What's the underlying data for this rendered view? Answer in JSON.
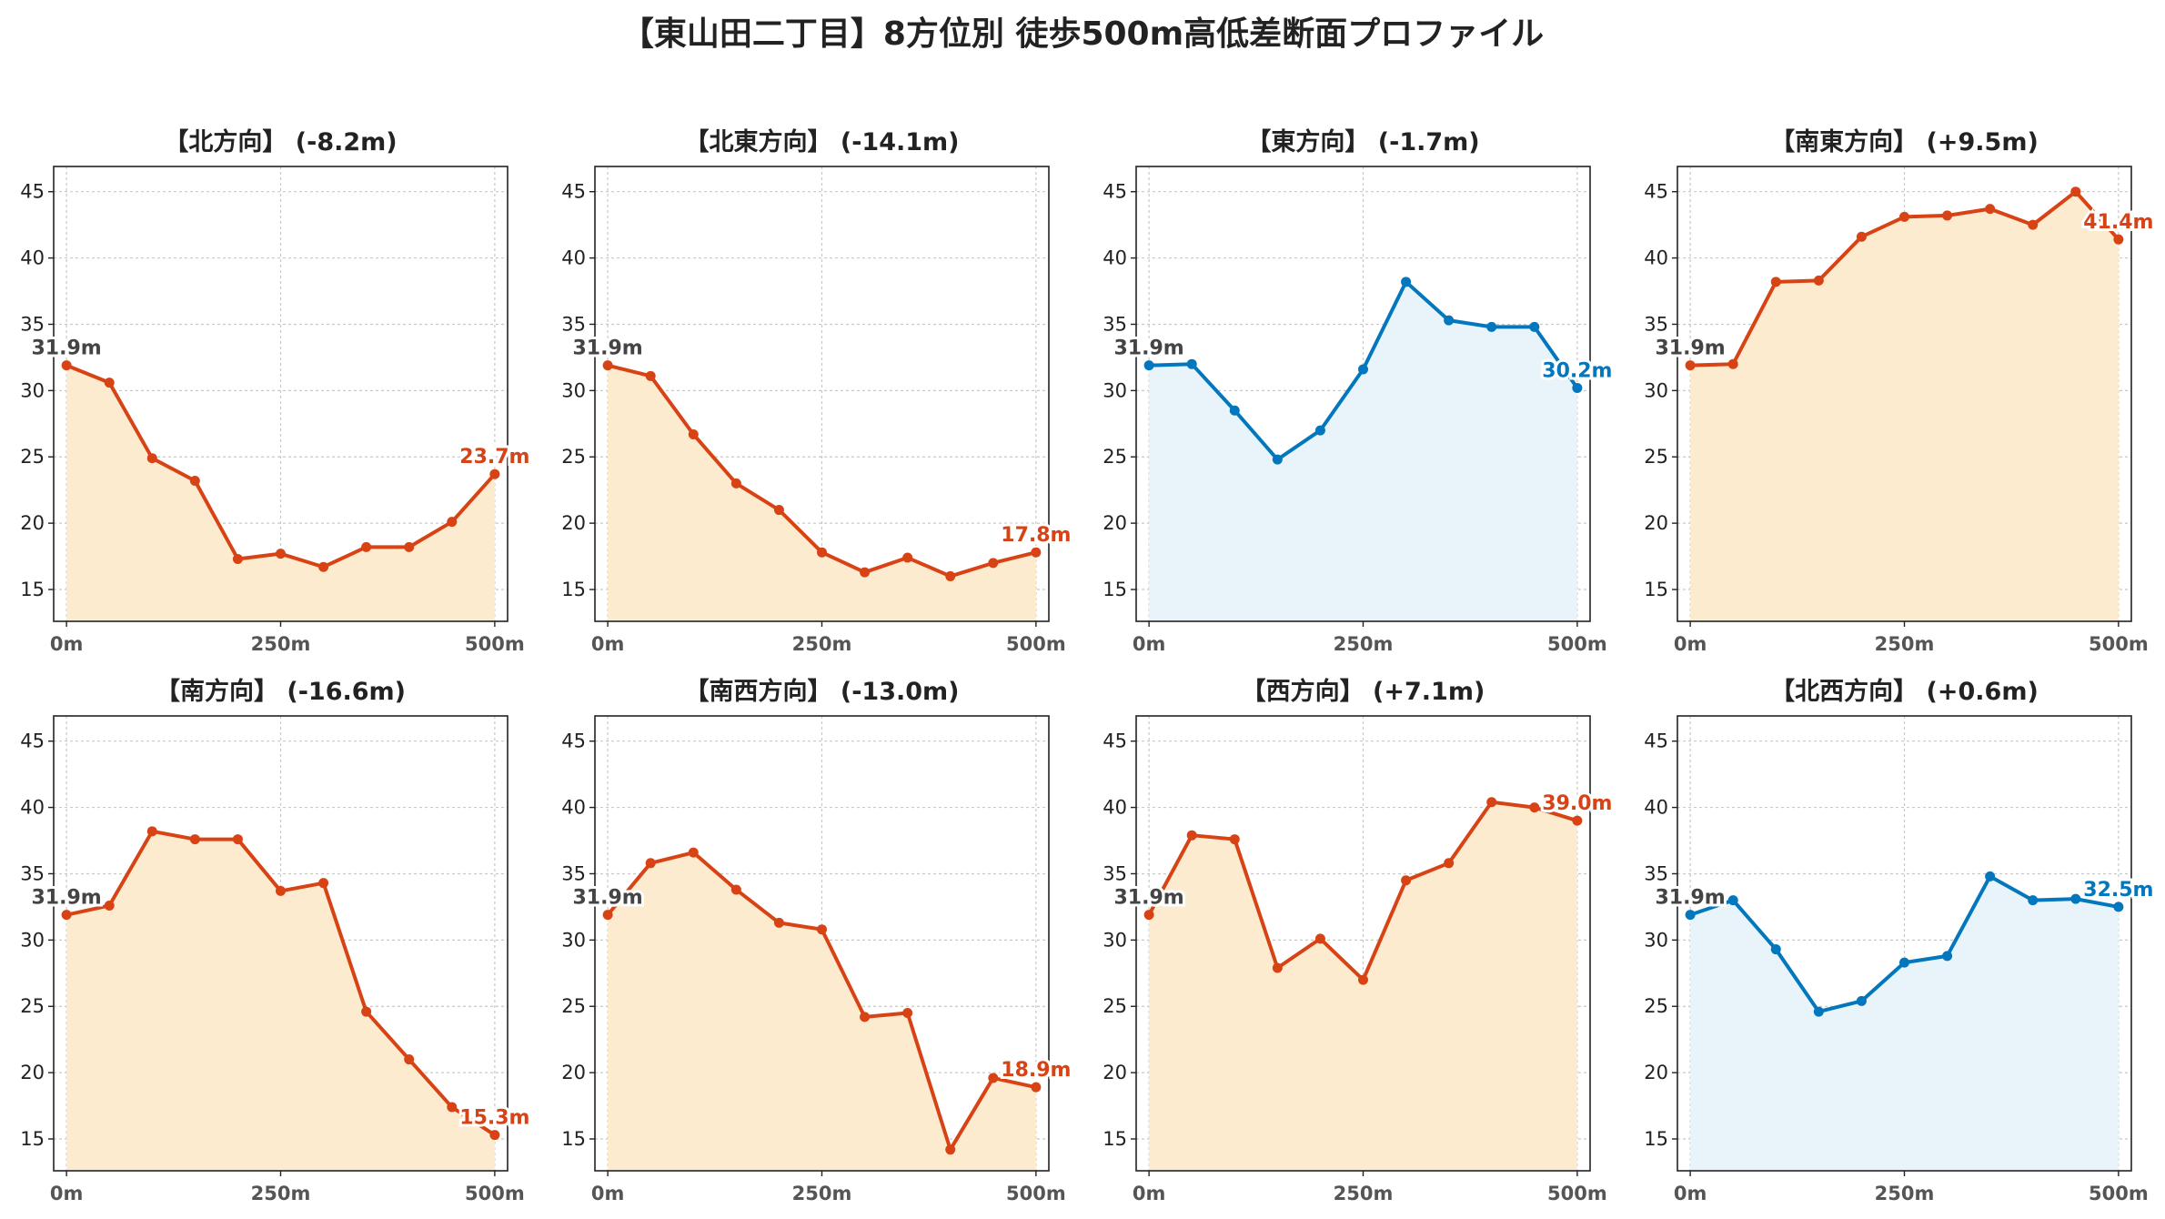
{
  "title": "【東山田二丁目】8方位別 徒歩500m高低差断面プロファイル",
  "colors": {
    "down": "#d84315",
    "up": "#0277bd",
    "down_fill": "#fdebd0",
    "up_fill": "#e8f4fa",
    "start_label": "#444444"
  },
  "chart_data": [
    {
      "type": "area",
      "title": "【北方向】 (-8.2m)",
      "trend": "down",
      "x": [
        0,
        50,
        100,
        150,
        200,
        250,
        300,
        350,
        400,
        450,
        500
      ],
      "values": [
        31.9,
        30.6,
        24.9,
        23.2,
        17.3,
        17.7,
        16.7,
        18.2,
        18.2,
        20.1,
        23.7
      ],
      "start_label": "31.9m",
      "end_label": "23.7m",
      "xticks": [
        "0m",
        "250m",
        "500m"
      ],
      "xtick_values": [
        0,
        250,
        500
      ],
      "yticks": [
        15,
        20,
        25,
        30,
        35,
        40,
        45
      ],
      "ylim": [
        12.6,
        46.9
      ],
      "xlim": [
        -15,
        515
      ],
      "grid": true
    },
    {
      "type": "area",
      "title": "【北東方向】 (-14.1m)",
      "trend": "down",
      "x": [
        0,
        50,
        100,
        150,
        200,
        250,
        300,
        350,
        400,
        450,
        500
      ],
      "values": [
        31.9,
        31.1,
        26.7,
        23.0,
        21.0,
        17.8,
        16.3,
        17.4,
        16.0,
        17.0,
        17.8
      ],
      "start_label": "31.9m",
      "end_label": "17.8m",
      "xticks": [
        "0m",
        "250m",
        "500m"
      ],
      "xtick_values": [
        0,
        250,
        500
      ],
      "yticks": [
        15,
        20,
        25,
        30,
        35,
        40,
        45
      ],
      "ylim": [
        12.6,
        46.9
      ],
      "xlim": [
        -15,
        515
      ],
      "grid": true
    },
    {
      "type": "area",
      "title": "【東方向】 (-1.7m)",
      "trend": "up",
      "x": [
        0,
        50,
        100,
        150,
        200,
        250,
        300,
        350,
        400,
        450,
        500
      ],
      "values": [
        31.9,
        32.0,
        28.5,
        24.8,
        27.0,
        31.6,
        38.2,
        35.3,
        34.8,
        34.8,
        30.2
      ],
      "start_label": "31.9m",
      "end_label": "30.2m",
      "xticks": [
        "0m",
        "250m",
        "500m"
      ],
      "xtick_values": [
        0,
        250,
        500
      ],
      "yticks": [
        15,
        20,
        25,
        30,
        35,
        40,
        45
      ],
      "ylim": [
        12.6,
        46.9
      ],
      "xlim": [
        -15,
        515
      ],
      "grid": true
    },
    {
      "type": "area",
      "title": "【南東方向】 (+9.5m)",
      "trend": "down",
      "x": [
        0,
        50,
        100,
        150,
        200,
        250,
        300,
        350,
        400,
        450,
        500
      ],
      "values": [
        31.9,
        32.0,
        38.2,
        38.3,
        41.6,
        43.1,
        43.2,
        43.7,
        42.5,
        45.0,
        41.4
      ],
      "start_label": "31.9m",
      "end_label": "41.4m",
      "xticks": [
        "0m",
        "250m",
        "500m"
      ],
      "xtick_values": [
        0,
        250,
        500
      ],
      "yticks": [
        15,
        20,
        25,
        30,
        35,
        40,
        45
      ],
      "ylim": [
        12.6,
        46.9
      ],
      "xlim": [
        -15,
        515
      ],
      "grid": true
    },
    {
      "type": "area",
      "title": "【南方向】 (-16.6m)",
      "trend": "down",
      "x": [
        0,
        50,
        100,
        150,
        200,
        250,
        300,
        350,
        400,
        450,
        500
      ],
      "values": [
        31.9,
        32.6,
        38.2,
        37.6,
        37.6,
        33.7,
        34.3,
        24.6,
        21.0,
        17.4,
        15.3
      ],
      "start_label": "31.9m",
      "end_label": "15.3m",
      "xticks": [
        "0m",
        "250m",
        "500m"
      ],
      "xtick_values": [
        0,
        250,
        500
      ],
      "yticks": [
        15,
        20,
        25,
        30,
        35,
        40,
        45
      ],
      "ylim": [
        12.6,
        46.9
      ],
      "xlim": [
        -15,
        515
      ],
      "grid": true
    },
    {
      "type": "area",
      "title": "【南西方向】 (-13.0m)",
      "trend": "down",
      "x": [
        0,
        50,
        100,
        150,
        200,
        250,
        300,
        350,
        400,
        450,
        500
      ],
      "values": [
        31.9,
        35.8,
        36.6,
        33.8,
        31.3,
        30.8,
        24.2,
        24.5,
        14.2,
        19.6,
        18.9
      ],
      "start_label": "31.9m",
      "end_label": "18.9m",
      "xticks": [
        "0m",
        "250m",
        "500m"
      ],
      "xtick_values": [
        0,
        250,
        500
      ],
      "yticks": [
        15,
        20,
        25,
        30,
        35,
        40,
        45
      ],
      "ylim": [
        12.6,
        46.9
      ],
      "xlim": [
        -15,
        515
      ],
      "grid": true
    },
    {
      "type": "area",
      "title": "【西方向】 (+7.1m)",
      "trend": "down",
      "x": [
        0,
        50,
        100,
        150,
        200,
        250,
        300,
        350,
        400,
        450,
        500
      ],
      "values": [
        31.9,
        37.9,
        37.6,
        27.9,
        30.1,
        27.0,
        34.5,
        35.8,
        40.4,
        40.0,
        39.0
      ],
      "start_label": "31.9m",
      "end_label": "39.0m",
      "xticks": [
        "0m",
        "250m",
        "500m"
      ],
      "xtick_values": [
        0,
        250,
        500
      ],
      "yticks": [
        15,
        20,
        25,
        30,
        35,
        40,
        45
      ],
      "ylim": [
        12.6,
        46.9
      ],
      "xlim": [
        -15,
        515
      ],
      "grid": true
    },
    {
      "type": "area",
      "title": "【北西方向】 (+0.6m)",
      "trend": "up",
      "x": [
        0,
        50,
        100,
        150,
        200,
        250,
        300,
        350,
        400,
        450,
        500
      ],
      "values": [
        31.9,
        33.0,
        29.3,
        24.6,
        25.4,
        28.3,
        28.8,
        34.8,
        33.0,
        33.1,
        32.5
      ],
      "start_label": "31.9m",
      "end_label": "32.5m",
      "xticks": [
        "0m",
        "250m",
        "500m"
      ],
      "xtick_values": [
        0,
        250,
        500
      ],
      "yticks": [
        15,
        20,
        25,
        30,
        35,
        40,
        45
      ],
      "ylim": [
        12.6,
        46.9
      ],
      "xlim": [
        -15,
        515
      ],
      "grid": true
    }
  ]
}
